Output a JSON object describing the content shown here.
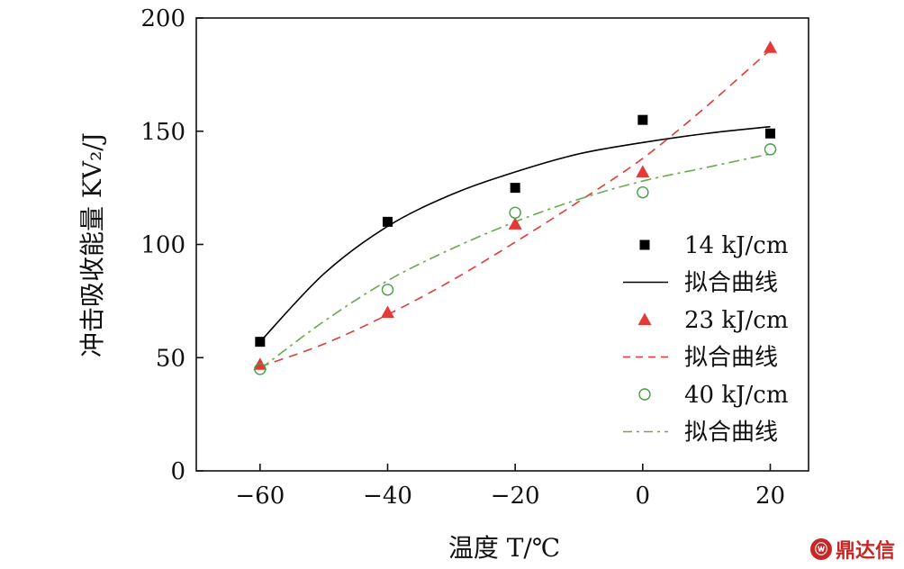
{
  "chart_data": {
    "type": "scatter",
    "xlabel": "温度 T/℃",
    "ylabel": "冲击吸收能量 KV₂/J",
    "xlim": [
      -70,
      26
    ],
    "ylim": [
      0,
      200
    ],
    "xticks": [
      -60,
      -40,
      -20,
      0,
      20
    ],
    "yticks": [
      0,
      50,
      100,
      150,
      200
    ],
    "x_tick_labels": [
      "−60",
      "−40",
      "−20",
      "0",
      "20"
    ],
    "y_tick_labels": [
      "0",
      "50",
      "100",
      "150",
      "200"
    ],
    "grid": false,
    "legend_position": "right",
    "series": [
      {
        "name": "14 kJ/cm",
        "marker": "square-filled",
        "color": "#000000",
        "x": [
          -60,
          -40,
          -20,
          0,
          20
        ],
        "y": [
          57,
          110,
          125,
          155,
          149
        ],
        "fit": {
          "name": "拟合曲线",
          "style": "solid",
          "color": "#000000",
          "x": [
            -60,
            -50,
            -40,
            -30,
            -20,
            -10,
            0,
            10,
            20
          ],
          "y": [
            57,
            87,
            108,
            122,
            132,
            140,
            145,
            149,
            152
          ]
        }
      },
      {
        "name": "23 kJ/cm",
        "marker": "triangle-filled",
        "color": "#e53935",
        "x": [
          -60,
          -40,
          -20,
          0,
          20
        ],
        "y": [
          47,
          70,
          109,
          132,
          187
        ],
        "fit": {
          "name": "拟合曲线",
          "style": "dashed",
          "color": "#e53935",
          "x": [
            -60,
            -50,
            -40,
            -30,
            -20,
            -10,
            0,
            10,
            20
          ],
          "y": [
            46,
            56,
            69,
            84,
            101,
            119,
            138,
            161,
            186
          ]
        }
      },
      {
        "name": "40 kJ/cm",
        "marker": "circle-open",
        "color": "#43a047",
        "x": [
          -60,
          -40,
          -20,
          0,
          20
        ],
        "y": [
          45,
          80,
          114,
          123,
          142
        ],
        "fit": {
          "name": "拟合曲线",
          "style": "dashdot",
          "color": "#6aa84f",
          "x": [
            -60,
            -50,
            -40,
            -30,
            -20,
            -10,
            0,
            10,
            20
          ],
          "y": [
            45,
            66,
            84,
            98,
            110,
            120,
            128,
            134,
            140
          ]
        }
      }
    ]
  },
  "watermark": {
    "logo": "ⓦ",
    "text": "鼎达信"
  }
}
